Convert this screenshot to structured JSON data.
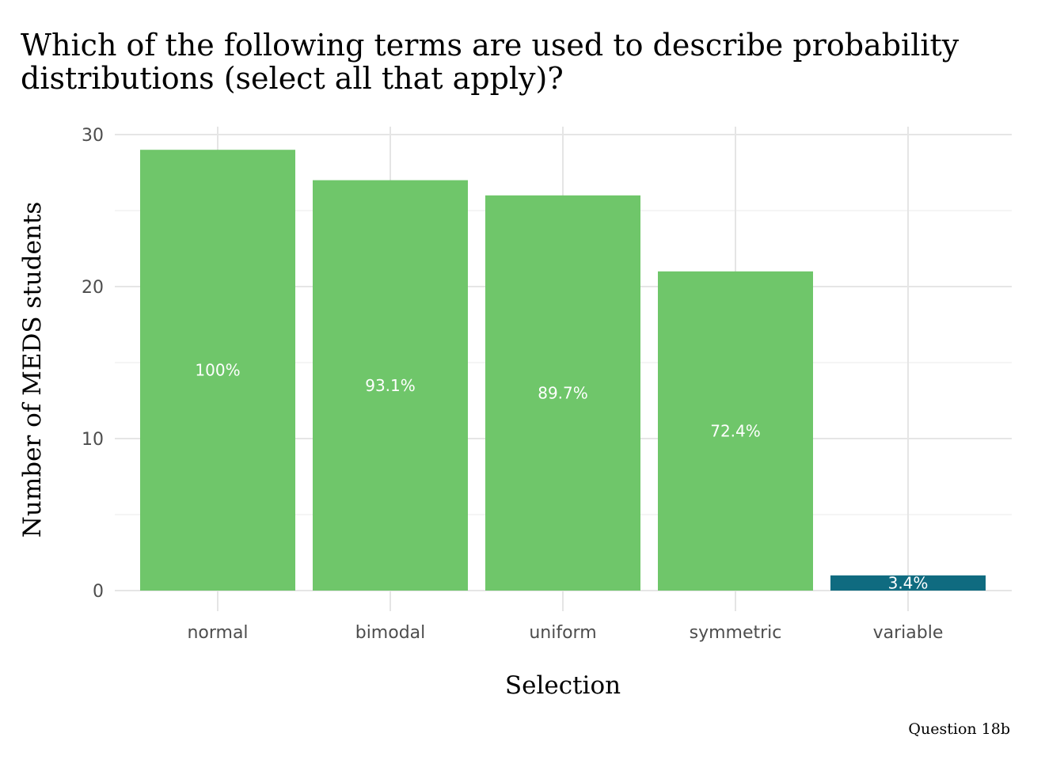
{
  "chart_data": {
    "type": "bar",
    "title_lines": [
      "Which of the following terms are used to describe probability",
      "distributions (select all that apply)?"
    ],
    "xlabel": "Selection",
    "ylabel": "Number of MEDS students",
    "caption": "Question 18b",
    "categories": [
      "normal",
      "bimodal",
      "uniform",
      "symmetric",
      "variable"
    ],
    "values": [
      29,
      27,
      26,
      21,
      1
    ],
    "labels": [
      "100%",
      "93.1%",
      "89.7%",
      "72.4%",
      "3.4%"
    ],
    "colors": [
      "#6fc66a",
      "#6fc66a",
      "#6fc66a",
      "#6fc66a",
      "#0f6b80"
    ],
    "ylim": [
      0,
      30
    ],
    "yticks": [
      0,
      10,
      20,
      30
    ],
    "grid": true,
    "legend": "none"
  }
}
